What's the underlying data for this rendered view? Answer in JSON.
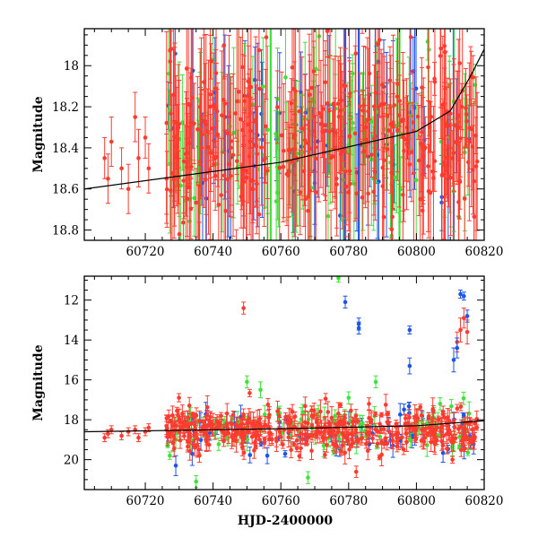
{
  "colors": {
    "red": "#ff3b2f",
    "green": "#3ee23a",
    "blue": "#1f55e6",
    "axis": "#000000",
    "trend": "#000000"
  },
  "chart_data": [
    {
      "type": "scatter",
      "panel": "top",
      "title": "",
      "xlabel": "",
      "ylabel": "Magnitude",
      "xlim": [
        60702,
        60820
      ],
      "ylim": [
        18.85,
        17.82
      ],
      "y_inverted": true,
      "x_ticks": [
        60720,
        60740,
        60760,
        60780,
        60800,
        60820
      ],
      "x_tick_labels": [
        "60720",
        "60740",
        "60760",
        "60780",
        "60800",
        "60820"
      ],
      "y_ticks": [
        18.0,
        18.2,
        18.4,
        18.6,
        18.8
      ],
      "y_tick_labels": [
        "18",
        "18.2",
        "18.4",
        "18.6",
        "18.8"
      ],
      "grid": false,
      "trend_line": {
        "x": [
          60702,
          60760,
          60800,
          60810,
          60816,
          60820
        ],
        "y": [
          18.6,
          18.47,
          18.32,
          18.22,
          18.05,
          17.92
        ]
      },
      "vertical_bands": [
        {
          "x": 60779,
          "color": "blue"
        },
        {
          "x": 60783,
          "color": "blue"
        },
        {
          "x": 60795,
          "color": "green"
        },
        {
          "x": 60811,
          "color": "blue"
        },
        {
          "x": 60757,
          "color": "green"
        }
      ],
      "series": [
        {
          "color_key": "red",
          "x": [
            60708,
            60709,
            60710,
            60713,
            60715,
            60717,
            60718,
            60720,
            60721
          ],
          "y": [
            18.45,
            18.55,
            18.37,
            18.5,
            18.6,
            18.25,
            18.45,
            18.35,
            18.5
          ],
          "err": [
            0.1,
            0.12,
            0.12,
            0.1,
            0.12,
            0.12,
            0.14,
            0.1,
            0.12
          ]
        }
      ],
      "dense_segments": [
        {
          "x0": 60726,
          "x1": 60818,
          "y_center": 18.35,
          "y_spread": 0.45,
          "n_red": 360,
          "n_green": 120,
          "n_blue": 70,
          "err_min": 0.08,
          "err_max": 0.45
        }
      ]
    },
    {
      "type": "scatter",
      "panel": "bottom",
      "title": "",
      "xlabel": "HJD-2400000",
      "ylabel": "Magnitude",
      "xlim": [
        60702,
        60820
      ],
      "ylim": [
        21.5,
        10.8
      ],
      "y_inverted": true,
      "x_ticks": [
        60720,
        60740,
        60760,
        60780,
        60800,
        60820
      ],
      "x_tick_labels": [
        "60720",
        "60740",
        "60760",
        "60780",
        "60800",
        "60820"
      ],
      "y_ticks": [
        12,
        14,
        16,
        18,
        20
      ],
      "y_tick_labels": [
        "12",
        "14",
        "16",
        "18",
        "20"
      ],
      "grid": false,
      "trend_line": {
        "x": [
          60702,
          60760,
          60800,
          60820
        ],
        "y": [
          18.6,
          18.45,
          18.3,
          18.05
        ]
      },
      "series": [
        {
          "color_key": "red",
          "x": [
            60708,
            60709,
            60710,
            60713,
            60715,
            60717,
            60718,
            60720,
            60721,
            60749,
            60812,
            60813,
            60814,
            60815,
            60805,
            60786,
            60800
          ],
          "y": [
            18.9,
            18.7,
            18.5,
            18.8,
            18.6,
            18.5,
            18.9,
            18.6,
            18.4,
            12.4,
            14.1,
            13.5,
            12.9,
            13.6,
            17.6,
            17.2,
            17.8
          ],
          "err": [
            0.2,
            0.2,
            0.2,
            0.2,
            0.2,
            0.2,
            0.2,
            0.2,
            0.2,
            0.3,
            0.5,
            0.6,
            0.5,
            0.6,
            0.3,
            0.3,
            0.3
          ]
        },
        {
          "color_key": "green",
          "x": [
            60777,
            60735,
            60750,
            60754,
            60780,
            60788,
            60768,
            60776,
            60807
          ],
          "y": [
            10.9,
            21.1,
            16.1,
            16.5,
            16.9,
            16.1,
            20.9,
            17.8,
            17.2
          ],
          "err": [
            0.2,
            0.3,
            0.3,
            0.4,
            0.3,
            0.3,
            0.3,
            0.3,
            0.3
          ]
        },
        {
          "color_key": "blue",
          "x": [
            60779,
            60783,
            60783,
            60798,
            60798,
            60813,
            60814,
            60815,
            60811,
            60812,
            60729,
            60756
          ],
          "y": [
            12.1,
            13.2,
            13.4,
            13.5,
            15.3,
            11.7,
            11.8,
            12.8,
            15.0,
            14.4,
            20.3,
            19.8
          ],
          "err": [
            0.3,
            0.3,
            0.3,
            0.2,
            0.4,
            0.2,
            0.2,
            0.3,
            0.6,
            0.5,
            0.5,
            0.4
          ]
        }
      ],
      "dense_segments": [
        {
          "x0": 60726,
          "x1": 60818,
          "y_center": 18.55,
          "y_spread": 1.3,
          "n_red": 420,
          "n_green": 110,
          "n_blue": 80,
          "err_min": 0.1,
          "err_max": 0.6
        }
      ]
    }
  ]
}
